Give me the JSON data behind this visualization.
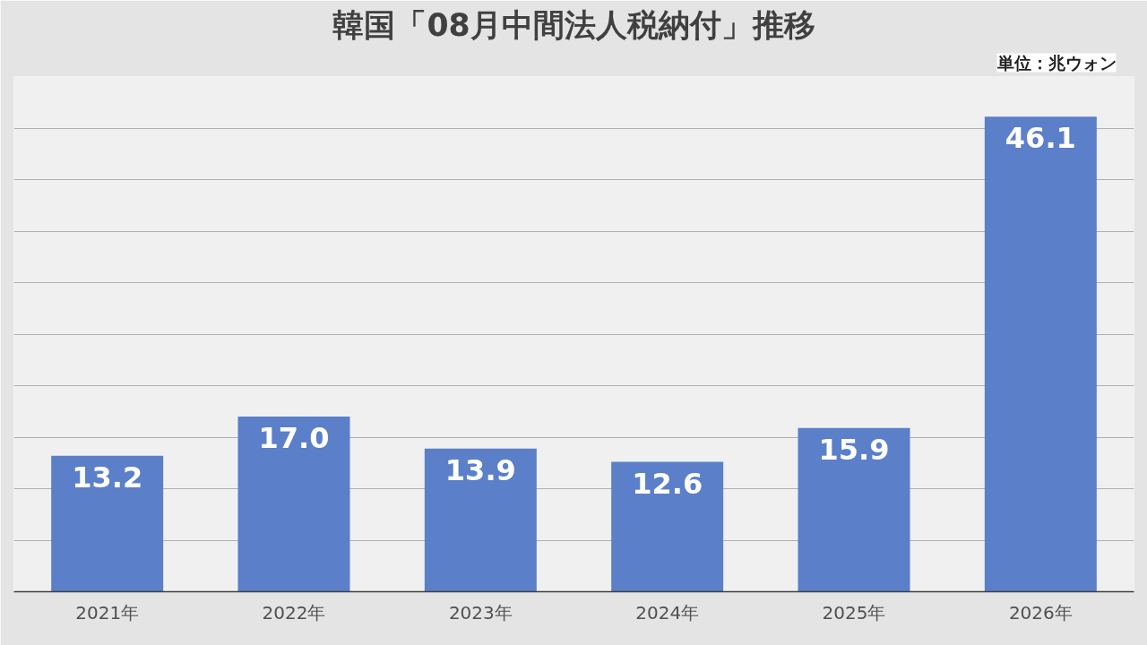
{
  "chart_data": {
    "type": "bar",
    "title": "韓国「08月中間法人税納付」推移",
    "categories": [
      "2021年",
      "2022年",
      "2023年",
      "2024年",
      "2025年",
      "2026年"
    ],
    "values": [
      13.2,
      17.0,
      13.9,
      12.6,
      15.9,
      46.1
    ],
    "value_labels": [
      "13.2",
      "17.0",
      "13.9",
      "12.6",
      "15.9",
      "46.1"
    ],
    "color": "#5b7fc9",
    "ylim": [
      0,
      50
    ],
    "yticks": [
      {
        "value": 0,
        "label": null
      },
      {
        "value": 5,
        "label": null
      },
      {
        "value": 10,
        "label": null
      },
      {
        "value": 15,
        "label": null
      },
      {
        "value": 20,
        "label": null
      },
      {
        "value": 25,
        "label": null
      },
      {
        "value": 30,
        "label": null
      },
      {
        "value": 35,
        "label": null
      },
      {
        "value": 40,
        "label": null
      },
      {
        "value": 45,
        "label": null
      },
      {
        "value": 50,
        "label": null
      }
    ],
    "tick_labels": "x",
    "grid": "y",
    "annotations": [
      "単位：兆ウォン"
    ]
  }
}
